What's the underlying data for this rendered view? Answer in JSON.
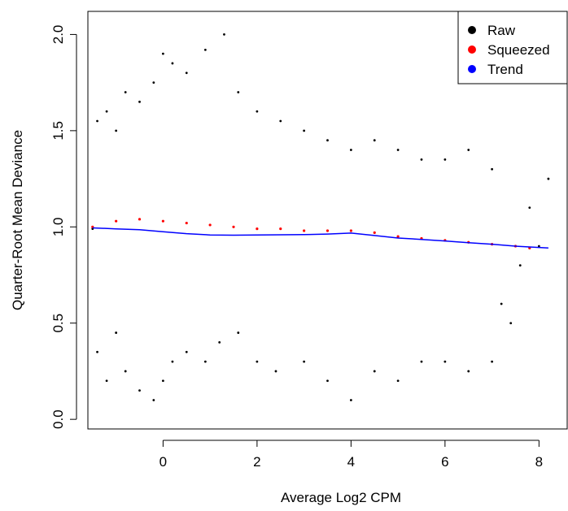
{
  "chart_data": {
    "type": "scatter",
    "title": "",
    "xlabel": "Average Log2 CPM",
    "ylabel": "Quarter-Root Mean Deviance",
    "xlim": [
      -1.6,
      8.6
    ],
    "ylim": [
      -0.05,
      2.12
    ],
    "xticks": [
      0,
      2,
      4,
      6,
      8
    ],
    "yticks": [
      0.0,
      0.5,
      1.0,
      1.5,
      2.0
    ],
    "xtick_labels": [
      "0",
      "2",
      "4",
      "6",
      "8"
    ],
    "ytick_labels": [
      "0.0",
      "0.5",
      "1.0",
      "1.5",
      "2.0"
    ],
    "grid": false,
    "legend_position": "top-right",
    "series": [
      {
        "name": "Raw",
        "color": "#000000",
        "points": [
          [
            -1.5,
            0.99
          ],
          [
            -1.4,
            0.35
          ],
          [
            -1.4,
            1.55
          ],
          [
            -1.2,
            0.2
          ],
          [
            -1.2,
            1.6
          ],
          [
            -1.0,
            0.45
          ],
          [
            -1.0,
            1.5
          ],
          [
            -0.8,
            0.25
          ],
          [
            -0.8,
            1.7
          ],
          [
            -0.5,
            0.15
          ],
          [
            -0.5,
            1.65
          ],
          [
            -0.2,
            0.1
          ],
          [
            -0.2,
            1.75
          ],
          [
            0.0,
            0.2
          ],
          [
            0.0,
            1.9
          ],
          [
            0.2,
            0.3
          ],
          [
            0.2,
            1.85
          ],
          [
            0.5,
            0.35
          ],
          [
            0.5,
            1.8
          ],
          [
            0.9,
            0.3
          ],
          [
            0.9,
            1.92
          ],
          [
            1.2,
            0.4
          ],
          [
            1.3,
            2.0
          ],
          [
            1.6,
            0.45
          ],
          [
            1.6,
            1.7
          ],
          [
            2.0,
            0.3
          ],
          [
            2.0,
            1.6
          ],
          [
            2.4,
            0.25
          ],
          [
            2.5,
            1.55
          ],
          [
            3.0,
            0.3
          ],
          [
            3.0,
            1.5
          ],
          [
            3.5,
            0.2
          ],
          [
            3.5,
            1.45
          ],
          [
            4.0,
            0.1
          ],
          [
            4.0,
            1.4
          ],
          [
            4.5,
            0.25
          ],
          [
            4.5,
            1.45
          ],
          [
            5.0,
            0.2
          ],
          [
            5.0,
            1.4
          ],
          [
            5.5,
            0.3
          ],
          [
            5.5,
            1.35
          ],
          [
            6.0,
            0.3
          ],
          [
            6.0,
            1.35
          ],
          [
            6.5,
            0.25
          ],
          [
            6.5,
            1.4
          ],
          [
            7.0,
            0.3
          ],
          [
            7.0,
            1.3
          ],
          [
            7.2,
            0.6
          ],
          [
            7.4,
            0.5
          ],
          [
            7.6,
            0.8
          ],
          [
            7.8,
            1.1
          ],
          [
            8.0,
            0.9
          ],
          [
            8.2,
            1.25
          ]
        ]
      },
      {
        "name": "Squeezed",
        "color": "#ff0000",
        "points": [
          [
            -1.5,
            1.0
          ],
          [
            -1.0,
            1.03
          ],
          [
            -0.5,
            1.04
          ],
          [
            0.0,
            1.03
          ],
          [
            0.5,
            1.02
          ],
          [
            1.0,
            1.01
          ],
          [
            1.5,
            1.0
          ],
          [
            2.0,
            0.99
          ],
          [
            2.5,
            0.99
          ],
          [
            3.0,
            0.98
          ],
          [
            3.5,
            0.98
          ],
          [
            4.0,
            0.98
          ],
          [
            4.5,
            0.97
          ],
          [
            5.0,
            0.95
          ],
          [
            5.5,
            0.94
          ],
          [
            6.0,
            0.93
          ],
          [
            6.5,
            0.92
          ],
          [
            7.0,
            0.91
          ],
          [
            7.5,
            0.9
          ],
          [
            7.8,
            0.89
          ]
        ]
      },
      {
        "name": "Trend",
        "color": "#0000ff",
        "x": [
          -1.5,
          -1.0,
          -0.5,
          0.0,
          0.5,
          1.0,
          1.5,
          2.0,
          2.5,
          3.0,
          3.5,
          4.0,
          4.5,
          5.0,
          5.5,
          6.0,
          6.5,
          7.0,
          7.5,
          8.0,
          8.2
        ],
        "y": [
          0.995,
          0.99,
          0.985,
          0.975,
          0.965,
          0.958,
          0.957,
          0.958,
          0.959,
          0.96,
          0.963,
          0.968,
          0.955,
          0.942,
          0.935,
          0.927,
          0.918,
          0.91,
          0.9,
          0.893,
          0.89
        ]
      }
    ]
  },
  "legend": {
    "items": [
      {
        "label": "Raw",
        "color": "#000000"
      },
      {
        "label": "Squeezed",
        "color": "#ff0000"
      },
      {
        "label": "Trend",
        "color": "#0000ff"
      }
    ]
  }
}
